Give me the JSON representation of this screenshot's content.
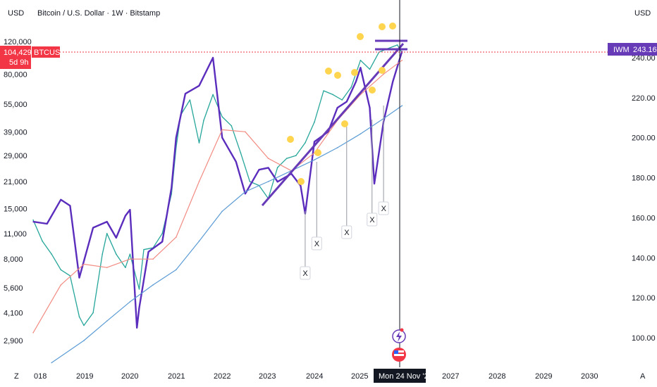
{
  "header": {
    "title": "Bitcoin / U.S. Dollar · 1W · Bitstamp",
    "left_currency": "USD",
    "right_currency": "USD"
  },
  "price_tag": {
    "symbol": "BTCUSD",
    "price": "104,429",
    "countdown": "5d 9h",
    "color": "#f23645"
  },
  "iwm_tag": {
    "symbol": "IWM",
    "price": "243.16",
    "color": "#673ab7"
  },
  "crosshair_date": "Mon 24 Nov '25",
  "x_ticks": [
    "018",
    "2019",
    "2020",
    "2021",
    "2022",
    "2023",
    "2024",
    "2025",
    "2027",
    "2028",
    "2029",
    "2030"
  ],
  "bottom_left_glyph": "Z",
  "bottom_right_glyph": "A",
  "marker_label": "X",
  "colors": {
    "btc_up": "#26a69a",
    "btc_down": "#ef5350",
    "iwm_line": "#5b2dbd",
    "ma_short": "#2962ff",
    "ma_long_red": "#f28b82",
    "ma_long_blue": "#5b9bd5",
    "marker_yellow": "#ffd54f",
    "current_price_line": "#f23645"
  },
  "chart_data": {
    "type": "line",
    "title": "Bitcoin / U.S. Dollar · 1W · Bitstamp",
    "xlabel": "",
    "ylabel": "",
    "y_scale_left": "log",
    "left_axis_ticks": [
      120000,
      80000,
      55000,
      39000,
      29000,
      21000,
      15000,
      11000,
      8000,
      5600,
      4100,
      2900
    ],
    "left_axis_labels": [
      "120,000",
      "80,000",
      "55,000",
      "39,000",
      "29,000",
      "21,000",
      "15,000",
      "11,000",
      "8,000",
      "5,600",
      "4,100",
      "2,900"
    ],
    "right_axis_ticks": [
      240,
      220,
      200,
      180,
      160,
      140,
      120,
      100
    ],
    "right_axis_labels": [
      "240.00",
      "220.00",
      "200.00",
      "180.00",
      "160.00",
      "140.00",
      "120.00",
      "100.00"
    ],
    "grid": false,
    "series": [
      {
        "name": "BTCUSD",
        "axis": "left",
        "x": [
          2017.9,
          2018.1,
          2018.3,
          2018.5,
          2018.7,
          2018.9,
          2019.0,
          2019.2,
          2019.4,
          2019.5,
          2019.7,
          2019.9,
          2020.0,
          2020.2,
          2020.3,
          2020.5,
          2020.7,
          2020.9,
          2021.0,
          2021.1,
          2021.3,
          2021.5,
          2021.6,
          2021.8,
          2022.0,
          2022.2,
          2022.4,
          2022.6,
          2022.8,
          2023.0,
          2023.2,
          2023.4,
          2023.6,
          2023.8,
          2024.0,
          2024.2,
          2024.4,
          2024.6,
          2024.8,
          2025.0,
          2025.2,
          2025.4,
          2025.6,
          2025.8,
          2025.9
        ],
        "values": [
          13000,
          10000,
          8500,
          7000,
          6500,
          3900,
          3500,
          4100,
          8500,
          11000,
          8500,
          7200,
          8500,
          5500,
          9000,
          9200,
          11000,
          18000,
          32000,
          48000,
          58000,
          34000,
          45000,
          62000,
          47000,
          42000,
          30000,
          21000,
          20000,
          17000,
          25000,
          28000,
          29000,
          34000,
          44000,
          65000,
          62000,
          58000,
          68000,
          95000,
          85000,
          105000,
          110000,
          115000,
          104429
        ]
      },
      {
        "name": "IWM",
        "axis": "right",
        "x": [
          2017.9,
          2018.2,
          2018.5,
          2018.7,
          2018.9,
          2019.2,
          2019.5,
          2019.7,
          2019.9,
          2020.0,
          2020.15,
          2020.2,
          2020.4,
          2020.7,
          2020.9,
          2021.0,
          2021.2,
          2021.5,
          2021.8,
          2022.0,
          2022.3,
          2022.5,
          2022.8,
          2023.0,
          2023.2,
          2023.5,
          2023.7,
          2023.8,
          2024.0,
          2024.3,
          2024.5,
          2024.7,
          2024.9,
          2025.0,
          2025.2,
          2025.3,
          2025.5,
          2025.7,
          2025.9
        ],
        "values": [
          158,
          157,
          169,
          166,
          130,
          155,
          158,
          150,
          161,
          164,
          105,
          115,
          143,
          148,
          175,
          200,
          222,
          226,
          240,
          200,
          188,
          172,
          184,
          185,
          178,
          182,
          176,
          162,
          198,
          203,
          215,
          218,
          228,
          235,
          215,
          177,
          208,
          228,
          243.16
        ]
      },
      {
        "name": "",
        "axis": "left",
        "style": "moving-average-red",
        "x": [
          2017.9,
          2018.5,
          2019.0,
          2019.5,
          2020.0,
          2020.5,
          2021.0,
          2021.5,
          2022.0,
          2022.5,
          2023.0,
          2023.5,
          2024.0,
          2024.5,
          2025.0,
          2025.5,
          2025.9
        ],
        "values": [
          3200,
          5800,
          7500,
          7200,
          8000,
          8000,
          10500,
          21000,
          40000,
          39000,
          28000,
          24000,
          30000,
          45000,
          62000,
          80000,
          95000
        ]
      },
      {
        "name": "",
        "axis": "left",
        "style": "moving-average-blue",
        "x": [
          2018.3,
          2019.0,
          2019.5,
          2020.0,
          2020.5,
          2021.0,
          2021.5,
          2022.0,
          2022.5,
          2023.0,
          2023.5,
          2024.0,
          2024.5,
          2025.0,
          2025.5,
          2025.9
        ],
        "values": [
          2200,
          2900,
          3700,
          4700,
          5800,
          7000,
          10000,
          14500,
          18500,
          21000,
          24000,
          27500,
          32000,
          38000,
          46000,
          54000
        ]
      }
    ],
    "markers": [
      {
        "x": 2023.8,
        "label": "X"
      },
      {
        "x": 2024.05,
        "label": "X"
      },
      {
        "x": 2024.7,
        "label": "X"
      },
      {
        "x": 2025.25,
        "label": "X"
      },
      {
        "x": 2025.5,
        "label": "X"
      }
    ],
    "annotations": [
      "trendline",
      "yellow markers",
      "crosshair"
    ]
  }
}
